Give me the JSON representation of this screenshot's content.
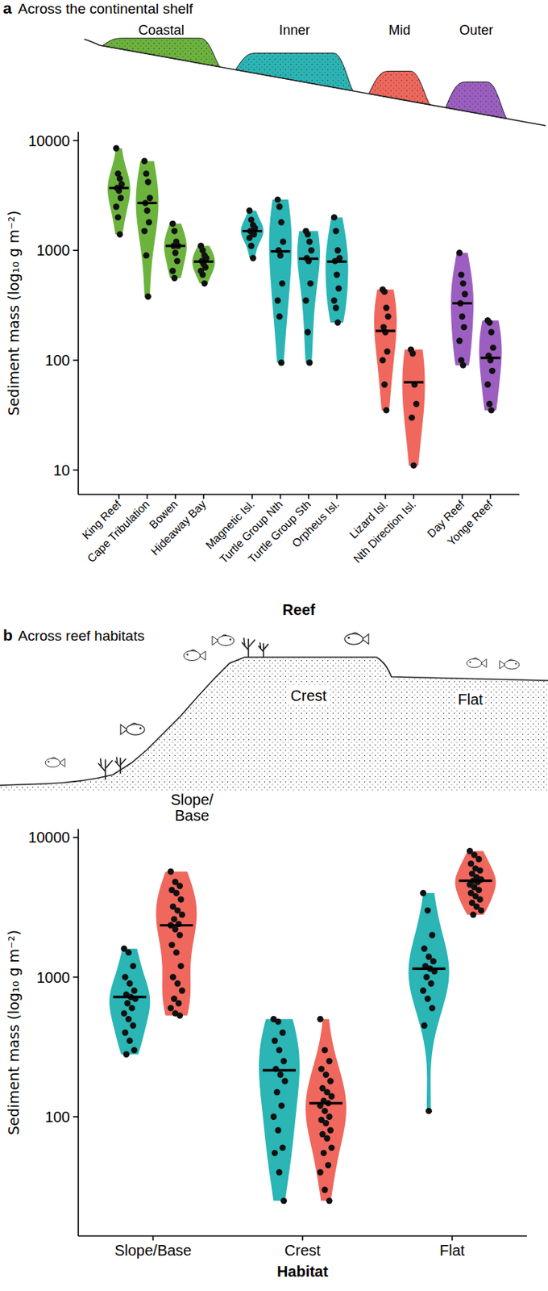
{
  "chart_data": [
    {
      "type": "violin",
      "panel_label": "a",
      "title": "Across the continental shelf",
      "log": "y",
      "x_label": "Reef",
      "y_label": "Sediment mass (log₁₀ g m⁻²)",
      "ylim": [
        6,
        12000
      ],
      "yticks": [
        10,
        100,
        1000,
        10000
      ],
      "series": [
        {
          "name": "Coastal",
          "color": "#6cb33e",
          "categories": [
            "King Reef",
            "Cape Tribulation",
            "Bowen",
            "Hideaway Bay"
          ],
          "values": [
            3700,
            2700,
            1100,
            790
          ],
          "points": [
            [
              8500,
              5000,
              4500,
              4000,
              3700,
              3500,
              3000,
              2500,
              2000,
              1400
            ],
            [
              6500,
              5000,
              4200,
              3000,
              2700,
              2300,
              1800,
              1500,
              900,
              380
            ],
            [
              1750,
              1500,
              1200,
              1100,
              1100,
              950,
              800,
              650,
              560
            ],
            [
              1100,
              1000,
              900,
              850,
              800,
              750,
              700,
              650,
              600,
              500
            ]
          ]
        },
        {
          "name": "Inner",
          "color": "#2bb5b5",
          "categories": [
            "Magnetic Isl.",
            "Turtle Group Nth",
            "Turtle Group Sth",
            "Orpheus Isl."
          ],
          "values": [
            1500,
            980,
            840,
            790
          ],
          "points": [
            [
              2300,
              1900,
              1700,
              1600,
              1500,
              1450,
              1400,
              1300,
              1100,
              850
            ],
            [
              2900,
              2500,
              1800,
              1200,
              1000,
              900,
              500,
              350,
              250,
              95
            ],
            [
              1500,
              1400,
              1200,
              1000,
              850,
              800,
              500,
              350,
              180,
              95
            ],
            [
              2000,
              1500,
              1000,
              850,
              800,
              600,
              450,
              350,
              300,
              220
            ]
          ]
        },
        {
          "name": "Mid",
          "color": "#f0675d",
          "categories": [
            "Lizard Isl.",
            "Nth Direction Isl."
          ],
          "values": [
            185,
            63
          ],
          "points": [
            [
              440,
              420,
              300,
              250,
              200,
              180,
              120,
              100,
              60,
              35
            ],
            [
              125,
              115,
              60,
              40,
              30,
              11
            ]
          ]
        },
        {
          "name": "Outer",
          "color": "#9c5fc1",
          "categories": [
            "Day Reef",
            "Yonge Reef"
          ],
          "values": [
            330,
            105
          ],
          "points": [
            [
              950,
              600,
              500,
              400,
              330,
              250,
              200,
              150,
              100,
              90
            ],
            [
              230,
              220,
              180,
              130,
              110,
              100,
              80,
              60,
              40,
              35
            ]
          ]
        }
      ]
    },
    {
      "type": "violin",
      "panel_label": "b",
      "title": "Across reef habitats",
      "log": "y",
      "x_label": "Habitat",
      "y_label": "Sediment mass (log₁₀ g m⁻²)",
      "categories": [
        "Slope/Base",
        "Crest",
        "Flat"
      ],
      "ylim": [
        14,
        11500
      ],
      "yticks": [
        100,
        1000,
        10000
      ],
      "series": [
        {
          "color": "#2bb5b5",
          "values": [
            720,
            215,
            1150
          ],
          "points": [
            [
              1600,
              1500,
              1200,
              1000,
              900,
              800,
              750,
              720,
              700,
              650,
              600,
              550,
              500,
              450,
              400,
              350,
              300,
              280
            ],
            [
              500,
              480,
              400,
              350,
              300,
              250,
              220,
              200,
              180,
              150,
              120,
              100,
              80,
              60,
              55,
              40,
              25
            ],
            [
              4000,
              3000,
              2000,
              1600,
              1400,
              1300,
              1200,
              1150,
              1100,
              1000,
              900,
              800,
              700,
              600,
              450,
              110
            ]
          ]
        },
        {
          "color": "#f0675d",
          "values": [
            2350,
            125,
            4900
          ],
          "points": [
            [
              5700,
              4800,
              4500,
              4200,
              4000,
              3600,
              3200,
              3000,
              2800,
              2600,
              2400,
              2350,
              2200,
              2000,
              1700,
              1500,
              1200,
              1000,
              900,
              800,
              700,
              650,
              600,
              550,
              530
            ],
            [
              500,
              300,
              250,
              220,
              200,
              180,
              160,
              150,
              140,
              130,
              125,
              120,
              110,
              100,
              95,
              90,
              80,
              75,
              70,
              60,
              55,
              45,
              40,
              30,
              25
            ],
            [
              8000,
              7500,
              7000,
              6500,
              6000,
              5800,
              5500,
              5200,
              5000,
              4900,
              4800,
              4600,
              4400,
              4200,
              4000,
              3800,
              3600,
              3400,
              3200,
              3000,
              2800
            ]
          ]
        }
      ]
    }
  ]
}
